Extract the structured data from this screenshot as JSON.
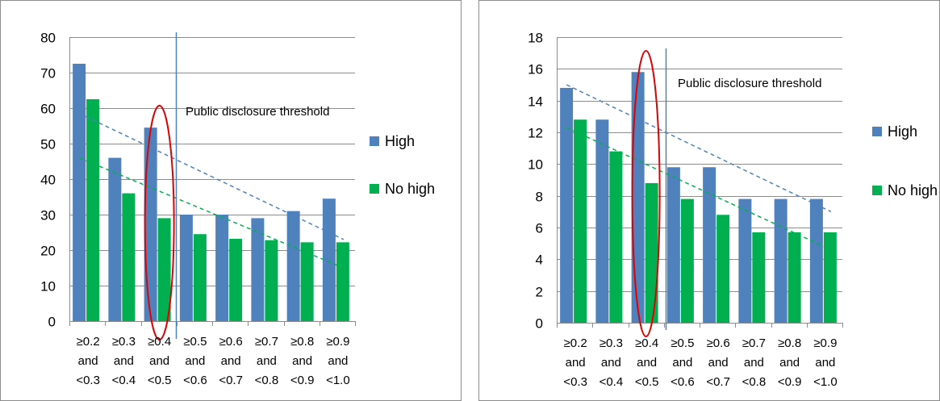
{
  "charts": [
    {
      "id": "left",
      "chart_data": {
        "type": "bar",
        "categories": [
          [
            "≥0.2",
            "and",
            "<0.3"
          ],
          [
            "≥0.3",
            "and",
            "<0.4"
          ],
          [
            "≥0.4",
            "and",
            "<0.5"
          ],
          [
            "≥0.5",
            "and",
            "<0.6"
          ],
          [
            "≥0.6",
            "and",
            "<0.7"
          ],
          [
            "≥0.7",
            "and",
            "<0.8"
          ],
          [
            "≥0.8",
            "and",
            "<0.9"
          ],
          [
            "≥0.9",
            "and",
            "<1.0"
          ]
        ],
        "series": [
          {
            "name": "High",
            "color": "#4f81bd",
            "values": [
              72.5,
              46,
              54.5,
              30,
              30,
              29,
              31,
              34.5
            ],
            "trend": [
              58.5,
              23
            ]
          },
          {
            "name": "No high",
            "color": "#00b050",
            "values": [
              62.5,
              36,
              29,
              24.5,
              23.2,
              22.8,
              22.2,
              22.2
            ],
            "trend": [
              46,
              15
            ]
          }
        ],
        "ylim": [
          0,
          80
        ],
        "yticks": [
          0,
          10,
          20,
          30,
          40,
          50,
          60,
          70,
          80
        ],
        "threshold_label": "Public disclosure threshold",
        "threshold_after_index": 2,
        "highlight_index": 2,
        "legend_position": "right",
        "grid": true
      }
    },
    {
      "id": "right",
      "chart_data": {
        "type": "bar",
        "categories": [
          [
            "≥0.2",
            "and",
            "<0.3"
          ],
          [
            "≥0.3",
            "and",
            "<0.4"
          ],
          [
            "≥0.4",
            "and",
            "<0.5"
          ],
          [
            "≥0.5",
            "and",
            "<0.6"
          ],
          [
            "≥0.6",
            "and",
            "<0.7"
          ],
          [
            "≥0.7",
            "and",
            "<0.8"
          ],
          [
            "≥0.8",
            "and",
            "<0.9"
          ],
          [
            "≥0.9",
            "and",
            "<1.0"
          ]
        ],
        "series": [
          {
            "name": "High",
            "color": "#4f81bd",
            "values": [
              14.8,
              12.8,
              15.8,
              9.8,
              9.8,
              7.8,
              7.8,
              7.8
            ],
            "trend": [
              15,
              7
            ]
          },
          {
            "name": "No high",
            "color": "#00b050",
            "values": [
              12.8,
              10.8,
              8.8,
              7.8,
              6.8,
              5.7,
              5.7,
              5.7
            ],
            "trend": [
              12.3,
              4.6
            ]
          }
        ],
        "ylim": [
          0,
          18
        ],
        "yticks": [
          0,
          2,
          4,
          6,
          8,
          10,
          12,
          14,
          16,
          18
        ],
        "threshold_label": "Public disclosure threshold",
        "threshold_after_index": 2,
        "highlight_index": 2,
        "legend_position": "right",
        "grid": true
      }
    }
  ]
}
